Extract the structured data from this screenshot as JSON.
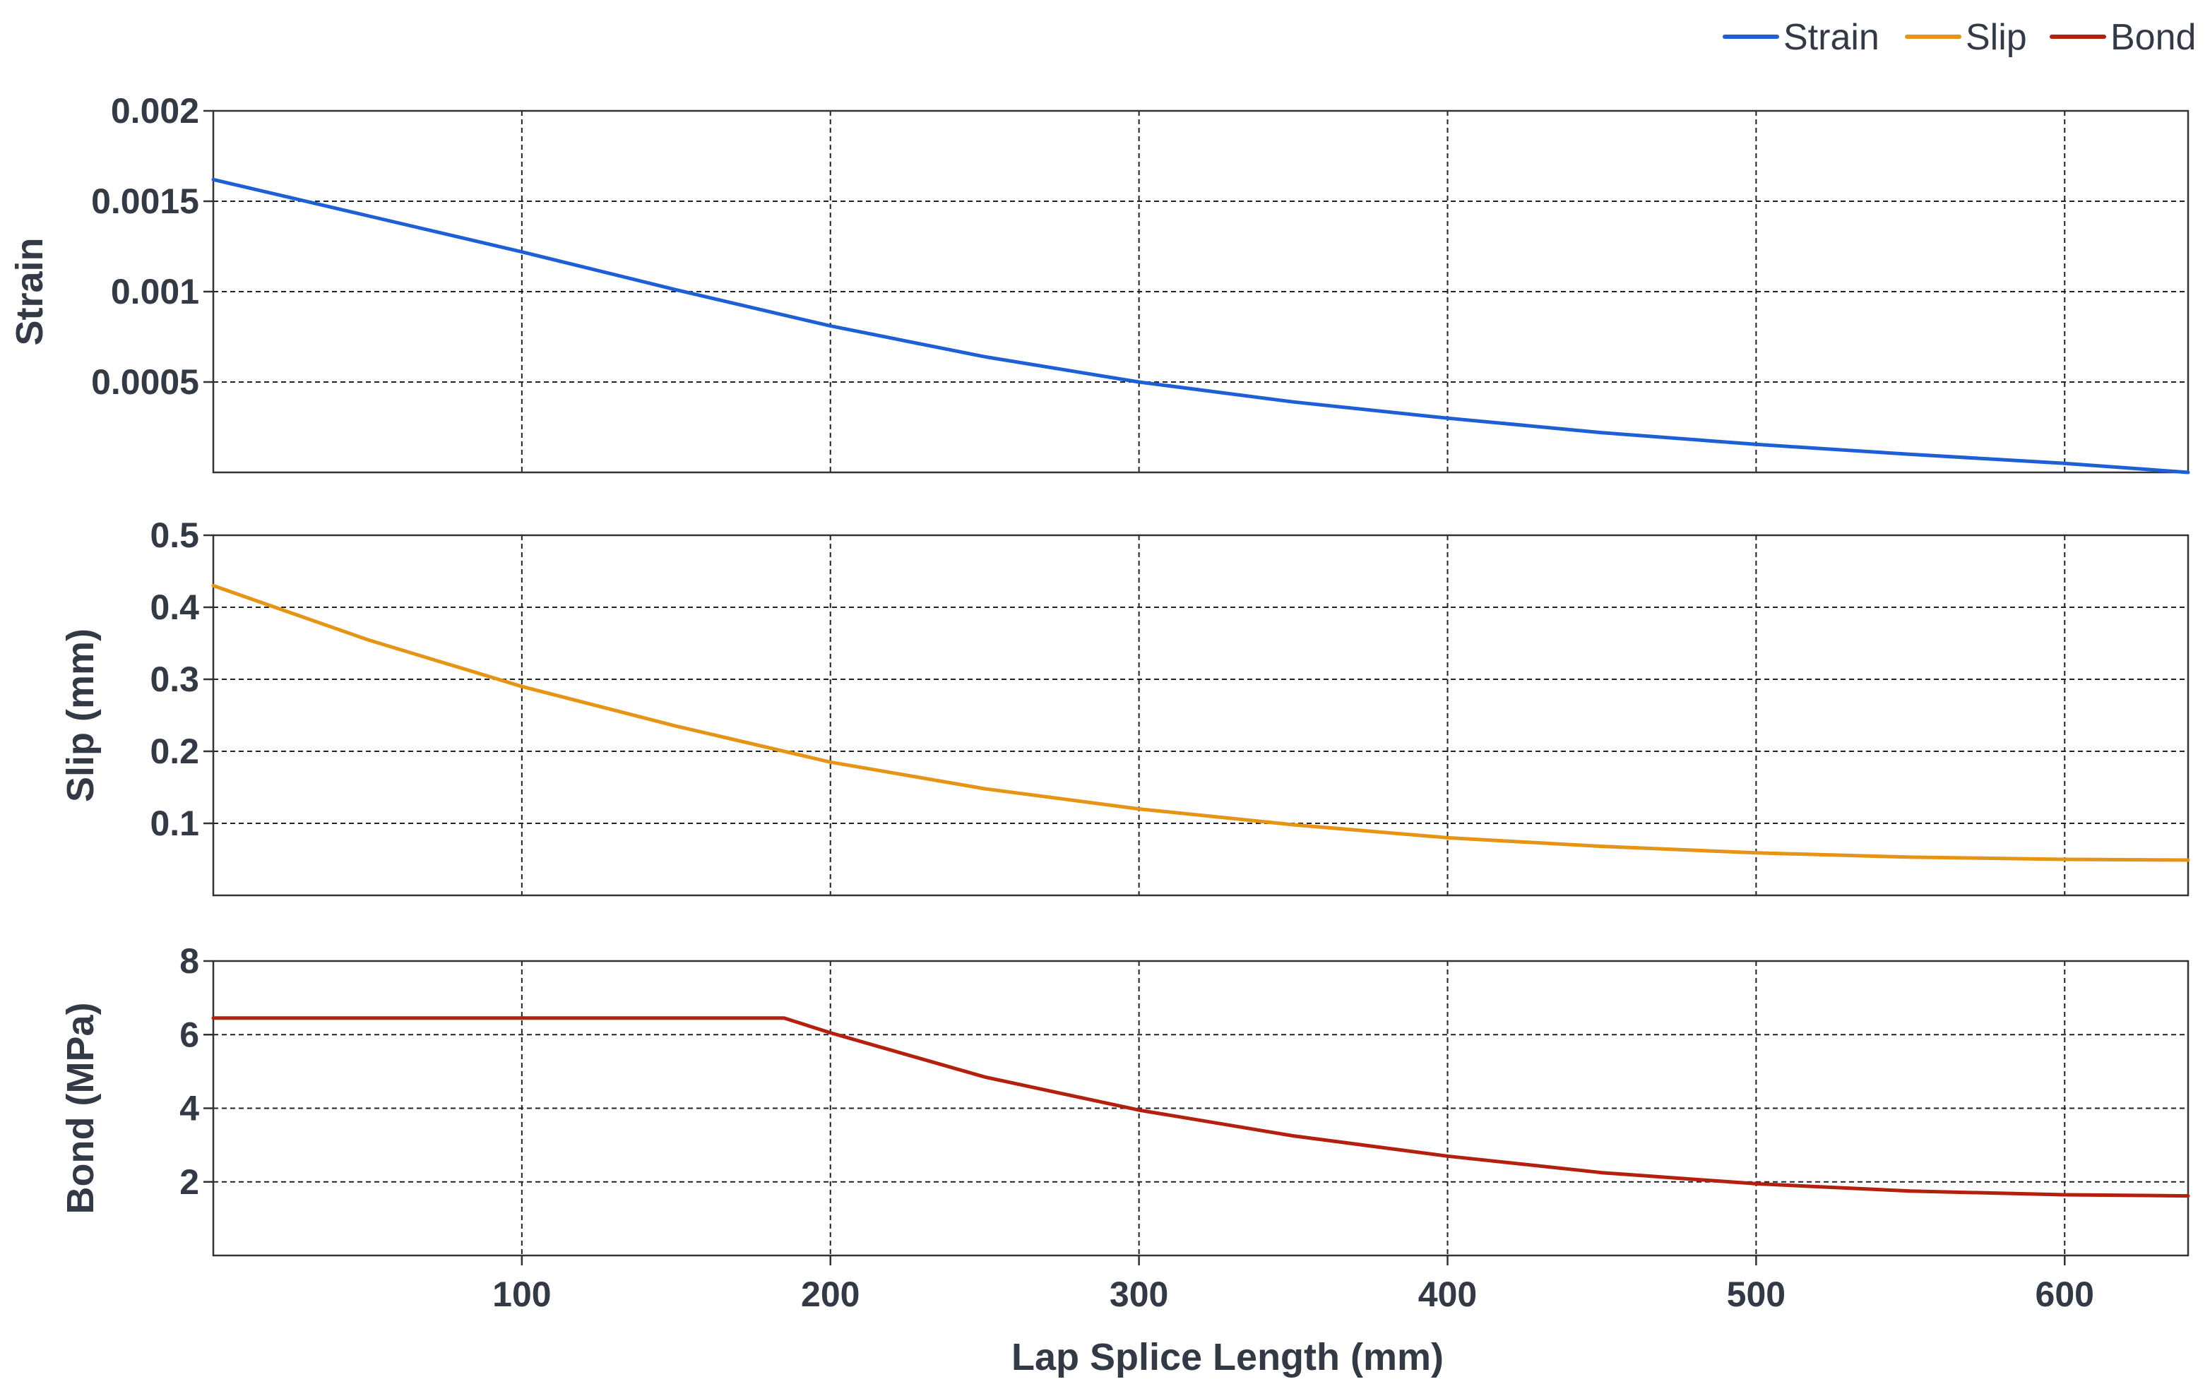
{
  "chart_data": {
    "type": "line",
    "xlabel": "Lap Splice Length (mm)",
    "xlim": [
      0,
      640
    ],
    "x_ticks": [
      100,
      200,
      300,
      400,
      500,
      600
    ],
    "grid": true,
    "shared_x": true,
    "legend": {
      "placement": "top-right",
      "entries": [
        {
          "name": "Strain",
          "color": "#1f5fd6"
        },
        {
          "name": "Slip",
          "color": "#e69416"
        },
        {
          "name": "Bond",
          "color": "#b3200e"
        }
      ]
    },
    "panels": [
      {
        "ylabel": "Strain",
        "ylim": [
          0,
          0.002
        ],
        "y_ticks": [
          0.0005,
          0.001,
          0.0015,
          0.002
        ],
        "y_tick_labels": [
          "0.0005",
          "0.001",
          "0.0015",
          "0.002"
        ],
        "series": {
          "name": "Strain",
          "color": "#1f5fd6",
          "x": [
            0,
            50,
            100,
            150,
            200,
            250,
            300,
            350,
            400,
            450,
            500,
            550,
            600,
            640
          ],
          "y": [
            0.00162,
            0.00142,
            0.00122,
            0.00101,
            0.00081,
            0.00064,
            0.0005,
            0.00039,
            0.0003,
            0.00022,
            0.000155,
            0.0001,
            5e-05,
            0.0
          ]
        }
      },
      {
        "ylabel": "Slip (mm)",
        "ylim": [
          0,
          0.5
        ],
        "y_ticks": [
          0.1,
          0.2,
          0.3,
          0.4,
          0.5
        ],
        "y_tick_labels": [
          "0.1",
          "0.2",
          "0.3",
          "0.4",
          "0.5"
        ],
        "series": {
          "name": "Slip",
          "color": "#e69416",
          "x": [
            0,
            50,
            100,
            150,
            200,
            250,
            300,
            350,
            400,
            450,
            500,
            550,
            600,
            640
          ],
          "y": [
            0.43,
            0.355,
            0.29,
            0.235,
            0.185,
            0.148,
            0.12,
            0.098,
            0.08,
            0.068,
            0.059,
            0.053,
            0.05,
            0.049
          ]
        }
      },
      {
        "ylabel": "Bond (MPa)",
        "ylim": [
          0,
          8
        ],
        "y_ticks": [
          2,
          4,
          6,
          8
        ],
        "y_tick_labels": [
          "2",
          "4",
          "6",
          "8"
        ],
        "series": {
          "name": "Bond",
          "color": "#b3200e",
          "x": [
            0,
            100,
            185,
            200,
            250,
            300,
            350,
            400,
            450,
            500,
            550,
            600,
            640
          ],
          "y": [
            6.45,
            6.45,
            6.45,
            6.05,
            4.85,
            3.95,
            3.25,
            2.7,
            2.25,
            1.95,
            1.75,
            1.65,
            1.62
          ]
        }
      }
    ]
  }
}
